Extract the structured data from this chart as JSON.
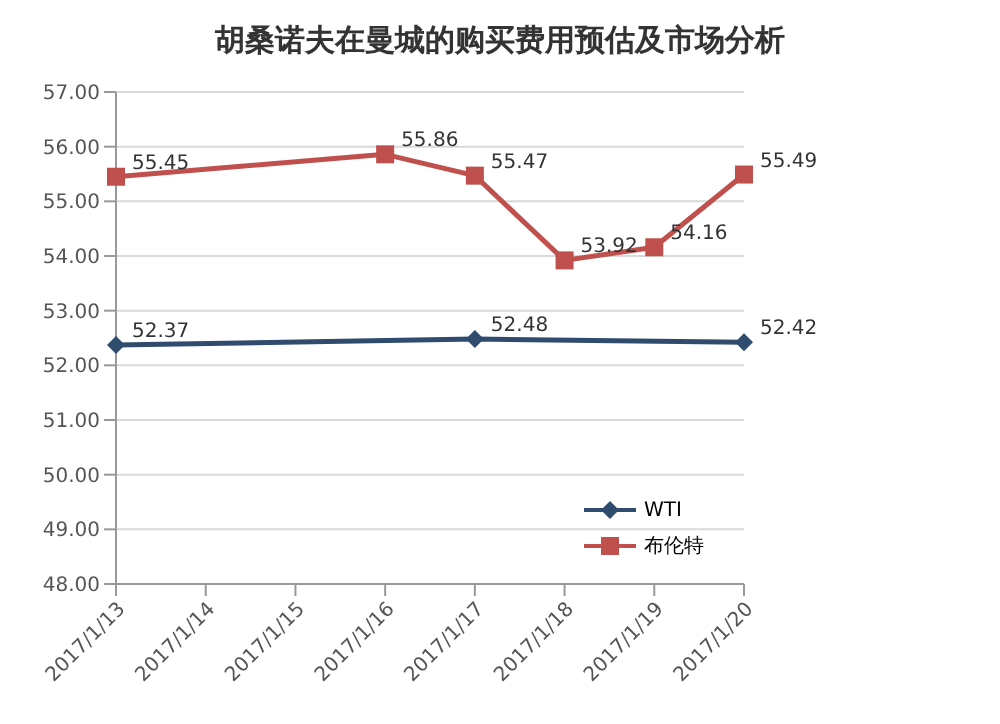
{
  "chart_data": {
    "type": "line",
    "title": "胡桑诺夫在曼城的购买费用预估及市场分析",
    "categories": [
      "2017/1/13",
      "2017/1/14",
      "2017/1/15",
      "2017/1/16",
      "2017/1/17",
      "2017/1/18",
      "2017/1/19",
      "2017/1/20"
    ],
    "series": [
      {
        "name": "WTI",
        "color": "#2f4b6e",
        "marker": "diamond",
        "values": [
          52.37,
          null,
          null,
          null,
          52.48,
          null,
          null,
          52.42
        ],
        "value_labels": [
          "52.37",
          null,
          null,
          null,
          "52.48",
          null,
          null,
          "52.42"
        ]
      },
      {
        "name": "布伦特",
        "color": "#c0504d",
        "marker": "square",
        "values": [
          55.45,
          null,
          null,
          55.86,
          55.47,
          53.92,
          54.16,
          55.49
        ],
        "value_labels": [
          "55.45",
          null,
          null,
          "55.86",
          "55.47",
          "53.92",
          "54.16",
          "55.49"
        ]
      }
    ],
    "ylim": [
      48,
      57
    ],
    "yticks": [
      {
        "value": 48,
        "label": "48.00"
      },
      {
        "value": 49,
        "label": "49.00"
      },
      {
        "value": 50,
        "label": "50.00"
      },
      {
        "value": 51,
        "label": "51.00"
      },
      {
        "value": 52,
        "label": "52.00"
      },
      {
        "value": 53,
        "label": "53.00"
      },
      {
        "value": 54,
        "label": "54.00"
      },
      {
        "value": 55,
        "label": "55.00"
      },
      {
        "value": 56,
        "label": "56.00"
      },
      {
        "value": 57,
        "label": "57.00"
      }
    ],
    "grid": "y",
    "legend": "bottom right",
    "line_style": "solid"
  }
}
